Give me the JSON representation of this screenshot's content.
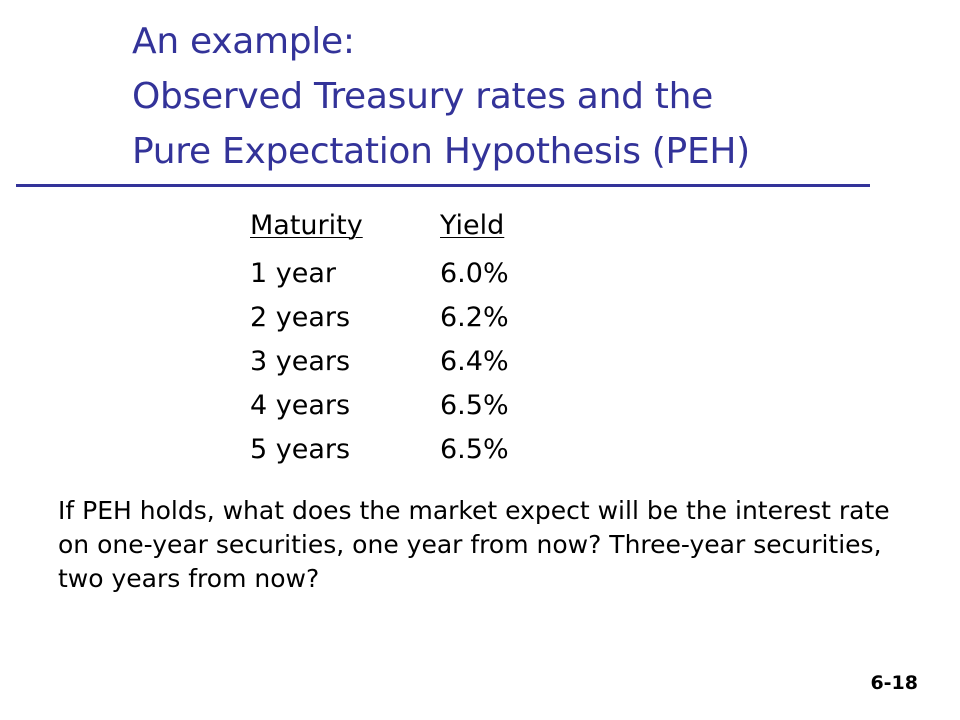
{
  "slide": {
    "title_lines": [
      "An example:",
      "Observed Treasury rates and the",
      "Pure Expectation Hypothesis (PEH)"
    ],
    "colors": {
      "title": "#333399",
      "rule": "#333399",
      "text": "#000000"
    },
    "table": {
      "headers": [
        "Maturity",
        "Yield"
      ],
      "rows": [
        [
          "1 year",
          "6.0%"
        ],
        [
          "2 years",
          "6.2%"
        ],
        [
          "3 years",
          "6.4%"
        ],
        [
          "4 years",
          "6.5%"
        ],
        [
          "5 years",
          "6.5%"
        ]
      ]
    },
    "question": "If PEH holds, what does the market expect will be the interest rate on one-year securities, one year from now?  Three-year securities, two years from now?",
    "slide_number": "6-18"
  }
}
